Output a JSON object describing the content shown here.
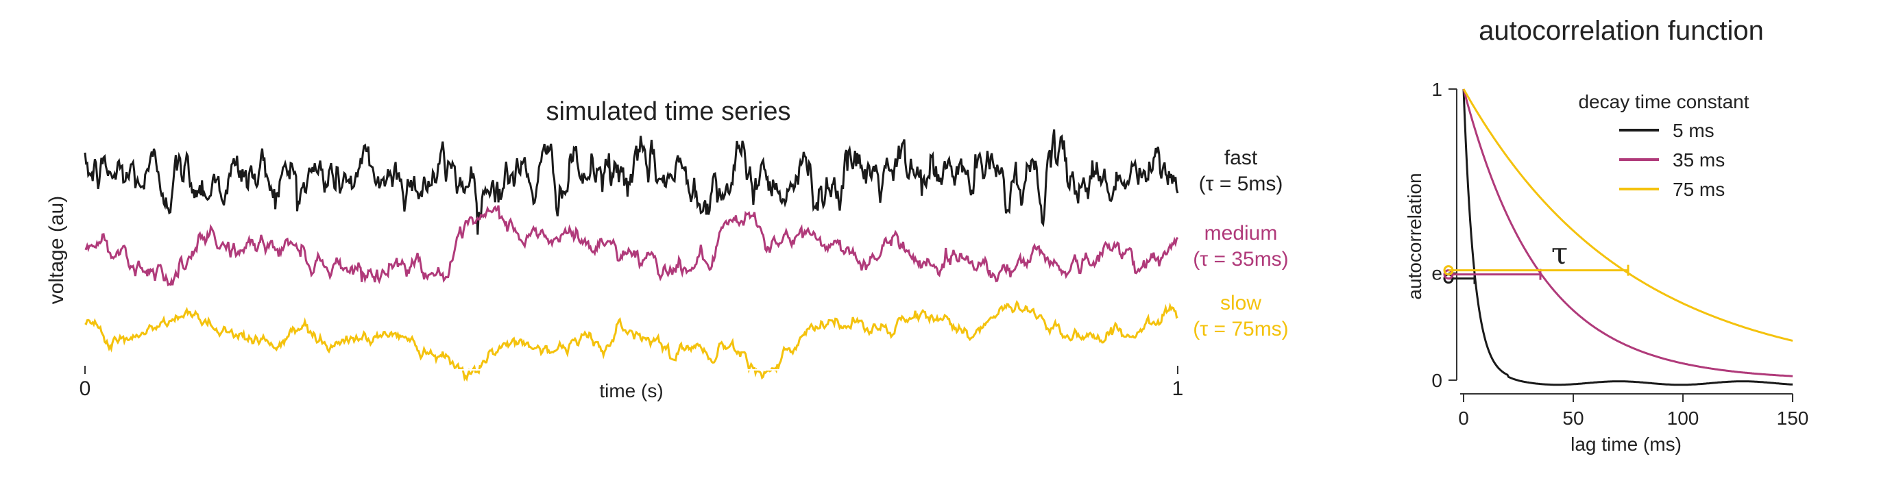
{
  "chart_data": [
    {
      "type": "line",
      "title": "simulated time series",
      "xlabel": "time (s)",
      "ylabel": "voltage (au)",
      "xlim": [
        0,
        1
      ],
      "x_ticks": [
        {
          "value": 0,
          "label": "0"
        },
        {
          "value": 1,
          "label": "1"
        }
      ],
      "series": [
        {
          "key": "fast",
          "label_line1": "fast",
          "label_line2": "(τ = 5ms)",
          "color": "#1a1a1a",
          "tau_ms": 5,
          "noise": 1.0
        },
        {
          "key": "medium",
          "label_line1": "medium",
          "label_line2": "(τ = 35ms)",
          "color": "#b03a7a",
          "tau_ms": 35,
          "noise": 0.9
        },
        {
          "key": "slow",
          "label_line1": "slow",
          "label_line2": "(τ = 75ms)",
          "color": "#f4c20d",
          "tau_ms": 75,
          "noise": 0.85
        }
      ]
    },
    {
      "type": "line",
      "title": "autocorrelation function",
      "xlabel": "lag time (ms)",
      "ylabel": "autocorrelation",
      "xlim": [
        0,
        150
      ],
      "ylim": [
        0,
        1
      ],
      "x_ticks": [
        {
          "value": 0,
          "label": "0"
        },
        {
          "value": 50,
          "label": "50"
        },
        {
          "value": 100,
          "label": "100"
        },
        {
          "value": 150,
          "label": "150"
        }
      ],
      "y_ticks": [
        {
          "value": 0,
          "label": "0"
        },
        {
          "value": 0.3679,
          "label": "e"
        },
        {
          "value": 1,
          "label": "1"
        }
      ],
      "legend_title": "decay time constant",
      "legend_position": "top-right",
      "series": [
        {
          "name": "5 ms",
          "color": "#1a1a1a",
          "tau_ms": 5
        },
        {
          "name": "35 ms",
          "color": "#b03a7a",
          "tau_ms": 35
        },
        {
          "name": "75 ms",
          "color": "#f4c20d",
          "tau_ms": 75
        }
      ],
      "annotation": {
        "text": "τ",
        "y_value": 0.3679
      }
    }
  ]
}
